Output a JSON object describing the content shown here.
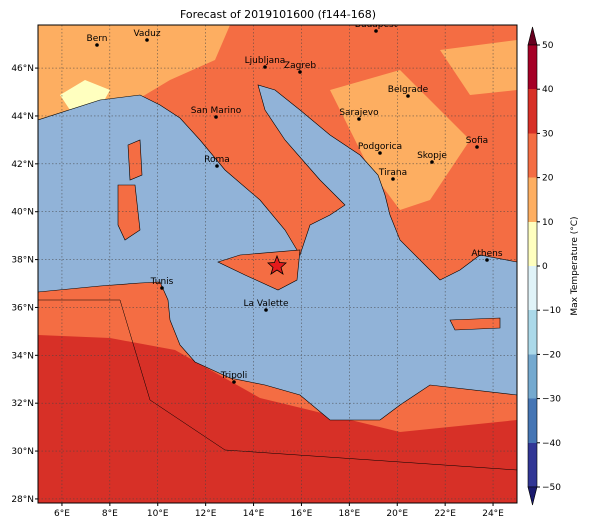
{
  "title": "Forecast of 2019101600 (f144-168)",
  "lon_range": [
    5,
    25
  ],
  "lat_range": [
    27.83,
    47.8
  ],
  "lon_ticks": [
    {
      "value": 6,
      "label": "6°E"
    },
    {
      "value": 8,
      "label": "8°E"
    },
    {
      "value": 10,
      "label": "10°E"
    },
    {
      "value": 12,
      "label": "12°E"
    },
    {
      "value": 14,
      "label": "14°E"
    },
    {
      "value": 16,
      "label": "16°E"
    },
    {
      "value": 18,
      "label": "18°E"
    },
    {
      "value": 20,
      "label": "20°E"
    },
    {
      "value": 22,
      "label": "22°E"
    },
    {
      "value": 24,
      "label": "24°E"
    }
  ],
  "lat_ticks": [
    {
      "value": 28,
      "label": "28°N"
    },
    {
      "value": 30,
      "label": "30°N"
    },
    {
      "value": 32,
      "label": "32°N"
    },
    {
      "value": 34,
      "label": "34°N"
    },
    {
      "value": 36,
      "label": "36°N"
    },
    {
      "value": 38,
      "label": "38°N"
    },
    {
      "value": 40,
      "label": "40°N"
    },
    {
      "value": 42,
      "label": "42°N"
    },
    {
      "value": 44,
      "label": "44°N"
    },
    {
      "value": 46,
      "label": "46°N"
    }
  ],
  "cities": [
    "Bern",
    "Vaduz",
    "Budapest",
    "Ljubljana",
    "Zagreb",
    "Belgrade",
    "San Marino",
    "Sarajevo",
    "Sofia",
    "Podgorica",
    "Skopje",
    "Roma",
    "Tirana",
    "Athens",
    "Tunis",
    "La Valette",
    "Tripoli"
  ],
  "colorbar": {
    "label": "Max Temperature (°C)",
    "range": [
      -50,
      50
    ],
    "ticks": [
      {
        "value": -50,
        "label": "−50"
      },
      {
        "value": -40,
        "label": "−40"
      },
      {
        "value": -30,
        "label": "−30"
      },
      {
        "value": -20,
        "label": "−20"
      },
      {
        "value": -10,
        "label": "−10"
      },
      0,
      10,
      20,
      30,
      40,
      50
    ]
  }
}
